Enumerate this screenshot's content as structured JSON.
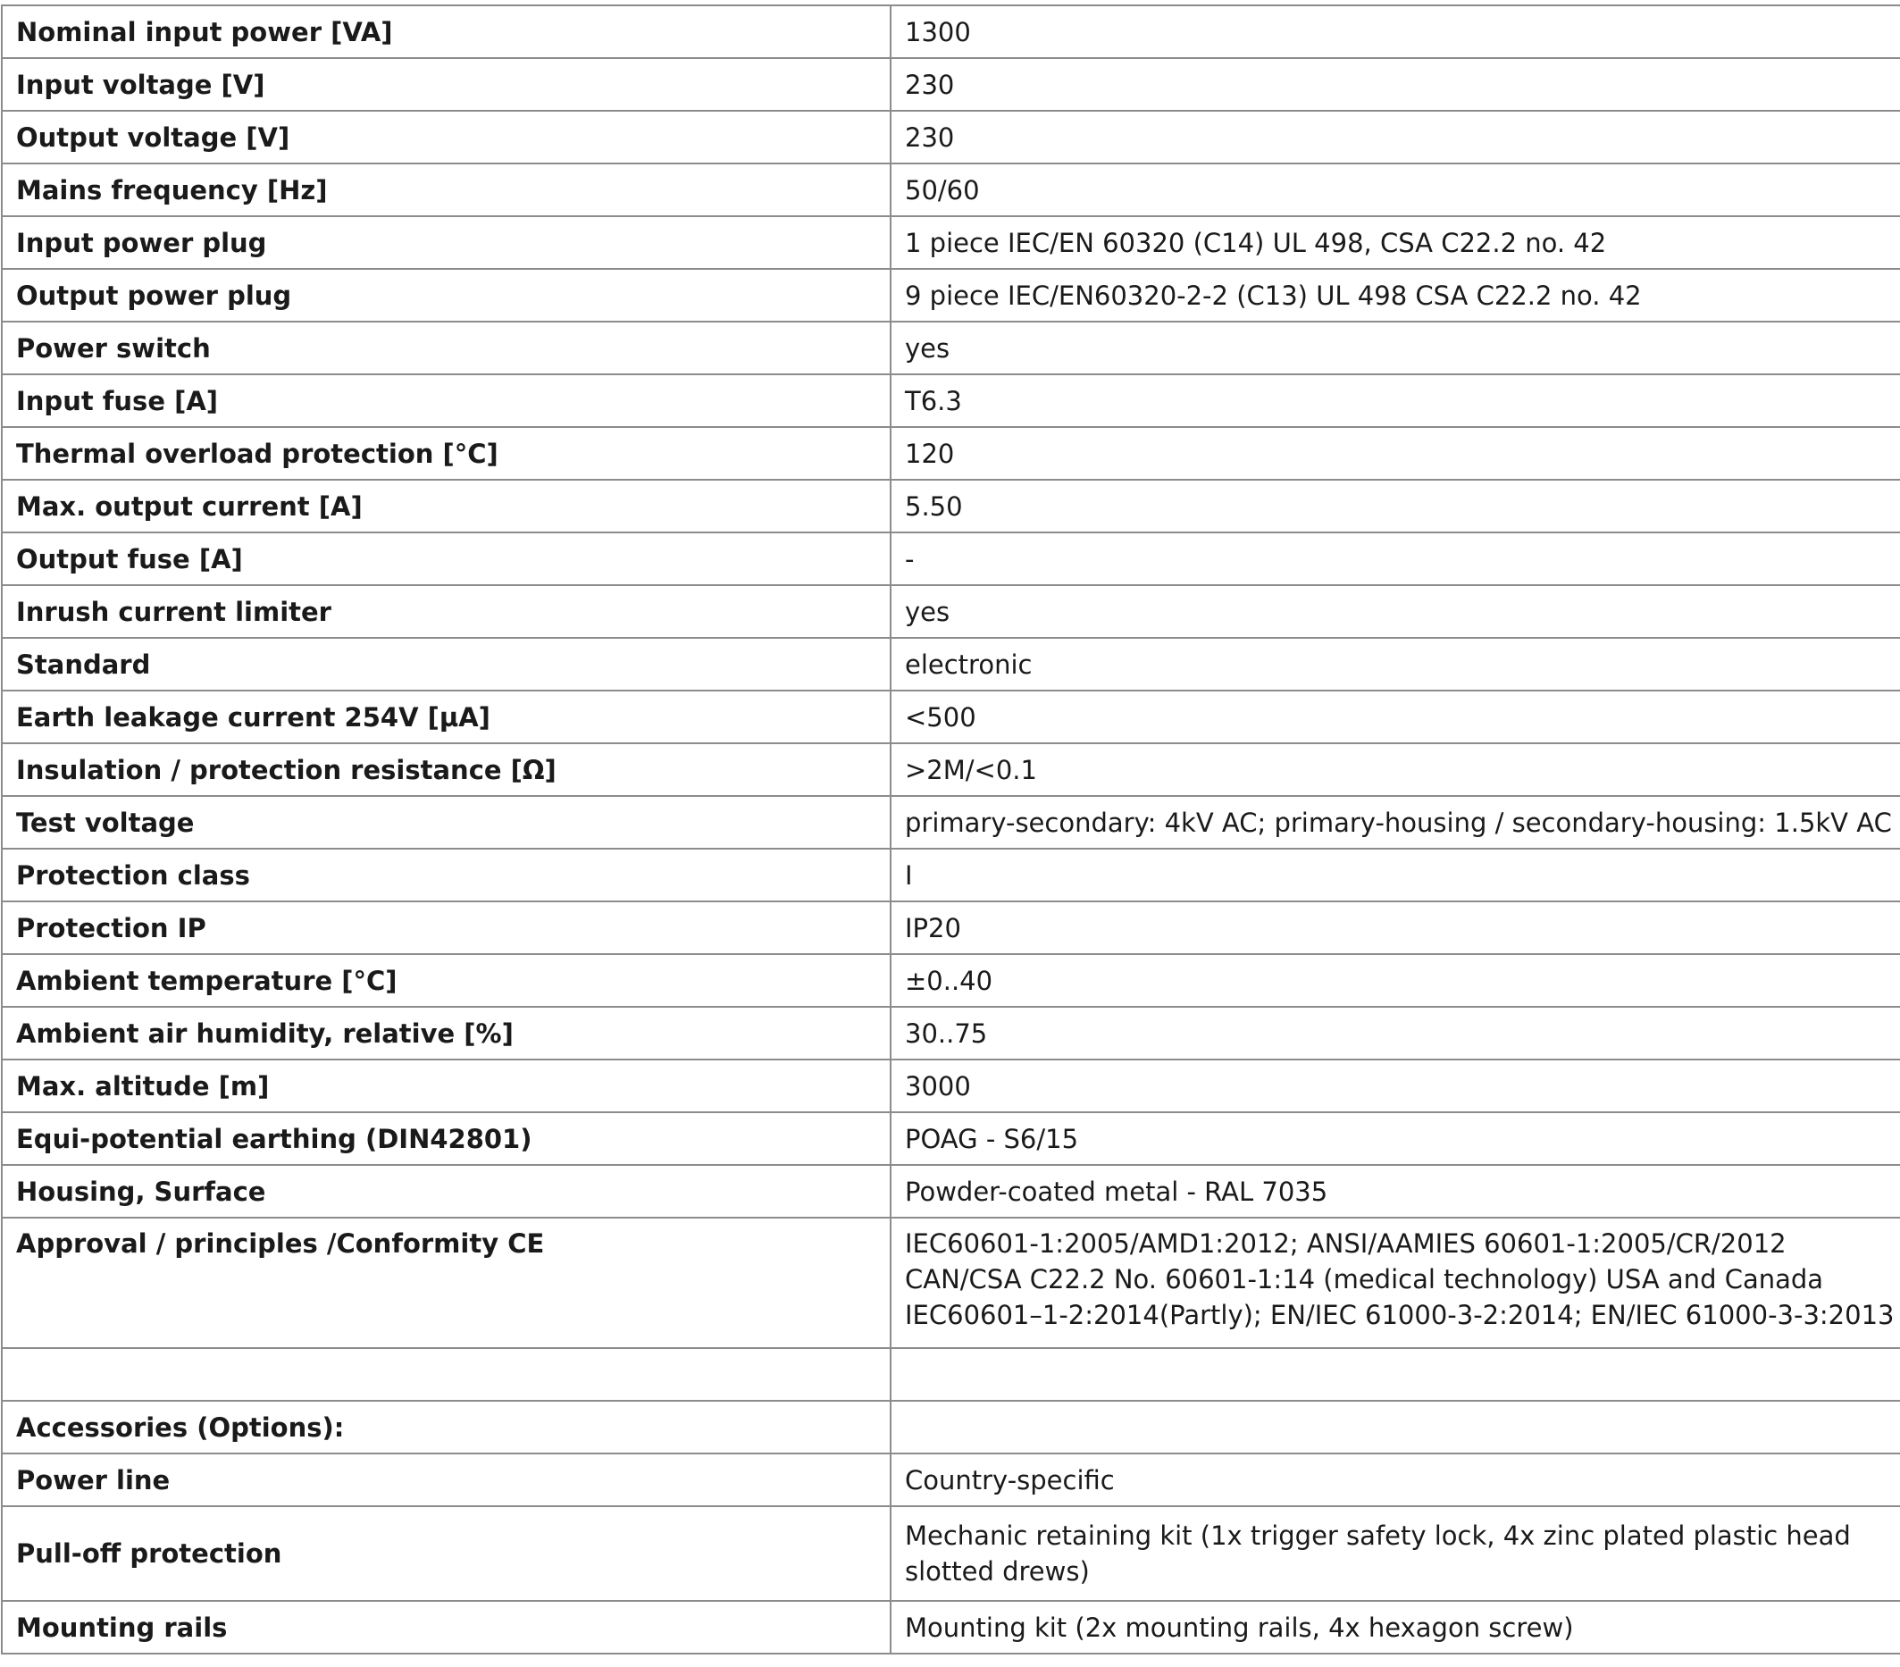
{
  "rows": [
    {
      "label": "Nominal input power [VA]",
      "value": "1300"
    },
    {
      "label": "Input voltage [V]",
      "value": "230"
    },
    {
      "label": "Output voltage [V]",
      "value": "230"
    },
    {
      "label": "Mains frequency [Hz]",
      "value": "50/60"
    },
    {
      "label": "Input power plug",
      "value": "1 piece IEC/EN 60320 (C14) UL 498, CSA C22.2 no. 42"
    },
    {
      "label": "Output power plug",
      "value": "9 piece IEC/EN60320-2-2 (C13) UL 498 CSA C22.2 no. 42"
    },
    {
      "label": "Power switch",
      "value": "yes"
    },
    {
      "label": "Input fuse [A]",
      "value": "T6.3"
    },
    {
      "label": "Thermal overload protection [°C]",
      "value": "120"
    },
    {
      "label": "Max. output current [A]",
      "value": "5.50"
    },
    {
      "label": "Output fuse [A]",
      "value": "-"
    },
    {
      "label": "Inrush current limiter",
      "value": "yes"
    },
    {
      "label": "Standard",
      "value": "electronic"
    },
    {
      "label": "Earth leakage current 254V [µA]",
      "value": "<500"
    },
    {
      "label": "Insulation / protection resistance [Ω]",
      "value": ">2M/<0.1"
    },
    {
      "label": "Test voltage",
      "value": "primary-secondary: 4kV AC; primary-housing / secondary-housing: 1.5kV AC"
    },
    {
      "label": "Protection class",
      "value": "I"
    },
    {
      "label": "Protection IP",
      "value": "IP20"
    },
    {
      "label": "Ambient temperature [°C]",
      "value": "±0..40"
    },
    {
      "label": "Ambient air humidity, relative [%]",
      "value": "30..75"
    },
    {
      "label": "Max. altitude [m]",
      "value": "3000"
    },
    {
      "label": "Equi-potential earthing (DIN42801)",
      "value": "POAG - S6/15"
    },
    {
      "label": "Housing, Surface",
      "value": "Powder-coated metal - RAL 7035"
    },
    {
      "label": "Approval / principles /Conformity CE",
      "value": "IEC60601-1:2005/AMD1:2012; ANSI/AAMIES 60601-1:2005/CR/2012\nCAN/CSA C22.2 No. 60601-1:14 (medical technology) USA and Canada\nIEC60601–1-2:2014(Partly); EN/IEC 61000-3-2:2014; EN/IEC 61000-3-3:2013"
    },
    {
      "label": "",
      "value": ""
    },
    {
      "label": "Accessories (Options):",
      "value": ""
    },
    {
      "label": "Power line",
      "value": "Country-specific"
    },
    {
      "label": "Pull-off protection",
      "value": "Mechanic retaining kit (1x trigger safety lock, 4x zinc plated plastic head\nslotted drews)"
    },
    {
      "label": "Mounting rails",
      "value": "Mounting kit (2x mounting rails, 4x hexagon screw)"
    }
  ]
}
